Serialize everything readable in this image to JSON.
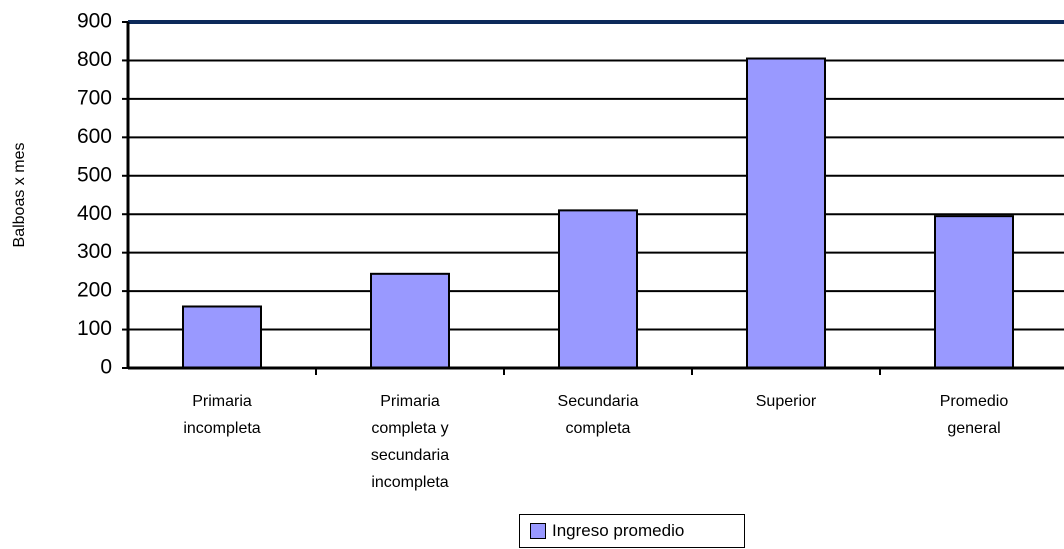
{
  "chart_data": {
    "type": "bar",
    "y_label": "Balboas x mes",
    "categories": [
      "Primaria\nincompleta",
      "Primaria\ncompleta y\nsecundaria\nincompleta",
      "Secundaria\ncompleta",
      "Superior",
      "Promedio\ngeneral"
    ],
    "series": [
      {
        "name": "Ingreso promedio",
        "color": "#9999ff",
        "values": [
          160,
          245,
          410,
          805,
          395
        ]
      }
    ],
    "ylim": [
      0,
      900
    ],
    "yticks": [
      0,
      100,
      200,
      300,
      400,
      500,
      600,
      700,
      800,
      900
    ],
    "grid": true
  }
}
